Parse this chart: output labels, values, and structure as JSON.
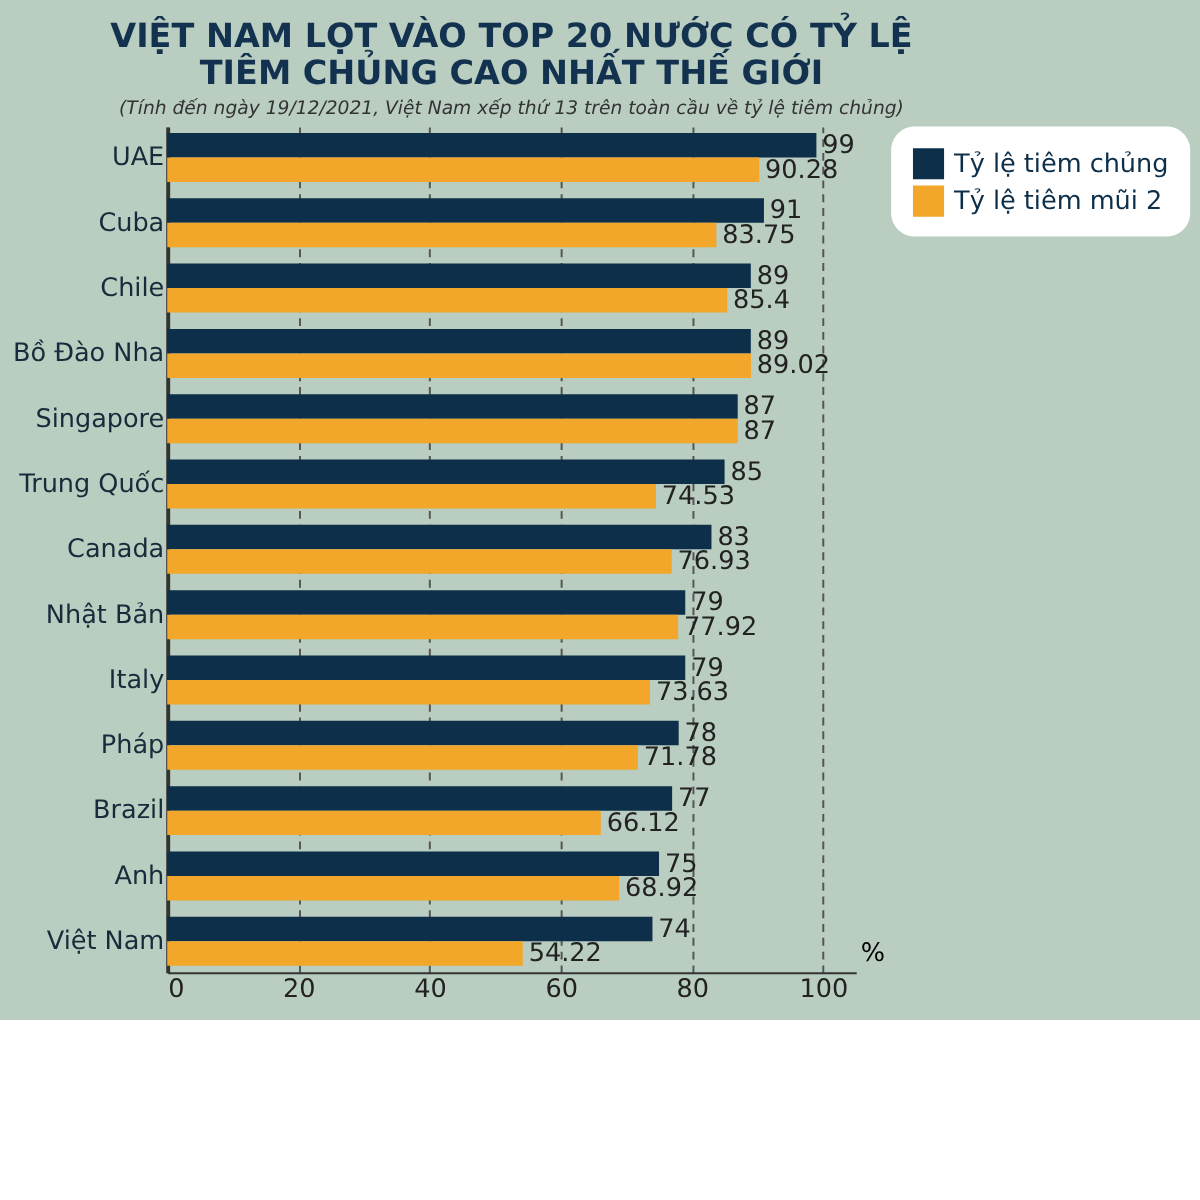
{
  "chart_data": {
    "type": "bar",
    "orientation": "horizontal",
    "title": "VIỆT NAM LỌT VÀO TOP 20 NƯỚC CÓ TỶ LỆ\nTIÊM CHỦNG CAO NHẤT THẾ GIỚI",
    "subtitle": "(Tính đến ngày 19/12/2021, Việt Nam xếp thứ 13 trên toàn cầu về tỷ lệ tiêm chủng)",
    "xlabel": "%",
    "categories": [
      "UAE",
      "Cuba",
      "Chile",
      "Bồ Đào Nha",
      "Singapore",
      "Trung Quốc",
      "Canada",
      "Nhật Bản",
      "Italy",
      "Pháp",
      "Brazil",
      "Anh",
      "Việt Nam"
    ],
    "series": [
      {
        "name": "Tỷ lệ tiêm chủng",
        "color": "#0d2f4a",
        "values": [
          99,
          91,
          89,
          89,
          87,
          85,
          83,
          79,
          79,
          78,
          77,
          75,
          74
        ]
      },
      {
        "name": "Tỷ lệ tiêm mũi 2",
        "color": "#f2a62a",
        "values": [
          90.28,
          83.75,
          85.4,
          89.02,
          87,
          74.53,
          76.93,
          77.92,
          73.63,
          71.78,
          66.12,
          68.92,
          54.22
        ]
      }
    ],
    "xlim": [
      0,
      105
    ],
    "xticks": [
      0,
      20,
      40,
      60,
      80,
      100
    ],
    "grid": "x",
    "legend": "right",
    "data_labels": true
  }
}
